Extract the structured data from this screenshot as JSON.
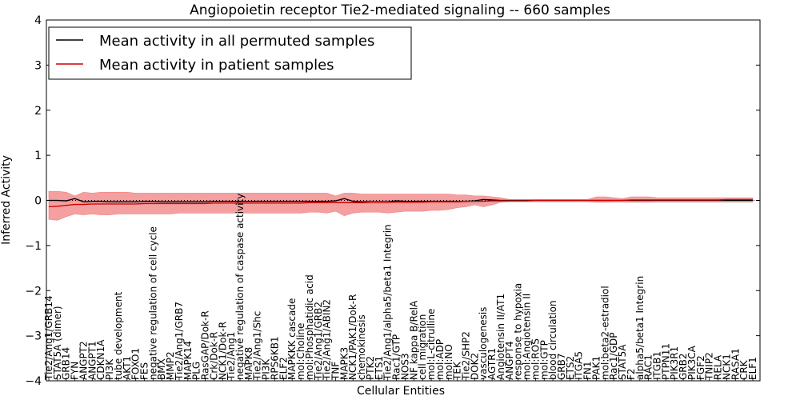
{
  "chart_data": {
    "type": "line",
    "title": "Angiopoietin receptor Tie2-mediated signaling -- 660 samples",
    "xlabel": "Cellular Entities",
    "ylabel": "Inferred Activity",
    "ylim": [
      -4,
      4
    ],
    "yticks": [
      -4,
      -3,
      -2,
      -1,
      0,
      1,
      2,
      3,
      4
    ],
    "legend_position": "top-left",
    "colors": {
      "permuted": "#000000",
      "patient": "#d00000",
      "patient_band": "#f08080",
      "permuted_band": "#c8c8c8"
    },
    "categories": [
      "Tie2/Ang1/GRB14",
      "STAT5A (dimer)",
      "GRB14",
      "FYN",
      "ANGPT2",
      "ANGPT1",
      "CDKN1A",
      "PI3K",
      "tube development",
      "AKT1",
      "FOXO1",
      "FES",
      "negative regulation of cell cycle",
      "BMX",
      "MMP2",
      "Tie2/Ang1/GRB7",
      "MAPK14",
      "PLG",
      "RasGAP/Dok-R",
      "Crk/Dok-R",
      "NCK1/Dok-R",
      "Tie2/Ang1",
      "negative regulation of caspase activity",
      "MAPK8",
      "Tie2/Ang1/Shc",
      "PI3K",
      "RPS6KB1",
      "ELF2",
      "MAPKKK cascade",
      "mol:Choline",
      "mol:Phosphatidic acid",
      "Tie2/Ang1/GRB2",
      "Tie2/Ang1/ABIN2",
      "TNF",
      "MAPK3",
      "NCK1/PAK1/Dok-R",
      "chemokinesis",
      "PTK2",
      "ETS1",
      "Tie2/Ang1/alpha5/beta1 Integrin",
      "Rac1/GTP",
      "NOS3",
      "NF kappa B/RelA",
      "cell migration",
      "mol:L-citrulline",
      "mol:ADP",
      "mol:NO",
      "TEK",
      "Tie2/SHP2",
      "DOK2",
      "vasculogenesis",
      "AGTR1",
      "Angiotensin II/AT1",
      "ANGPT4",
      "response to hypoxia",
      "mol:Angiotensin II",
      "mol:ROS",
      "mol:GTP",
      "blood circulation",
      "GRB7",
      "ETS2",
      "ITGA5",
      "FN1",
      "PAK1",
      "mol:beta2-estradiol",
      "Rac1/GDP",
      "STAT5A",
      "F2",
      "alpha5/beta1 Integrin",
      "RAC1",
      "ITGB1",
      "PTPN11",
      "PIK3R1",
      "GRB2",
      "PIK3CA",
      "FGF2",
      "TNIP2",
      "RELA",
      "NCK1",
      "RASA1",
      "CRK",
      "ELF1"
    ],
    "series": [
      {
        "name": "Mean activity in all permuted samples",
        "color": "#000000",
        "values": [
          0.0,
          0.0,
          -0.01,
          0.04,
          -0.03,
          -0.02,
          -0.02,
          -0.03,
          -0.03,
          -0.03,
          -0.03,
          -0.02,
          -0.02,
          -0.03,
          -0.03,
          -0.03,
          -0.03,
          -0.03,
          -0.03,
          -0.02,
          -0.02,
          -0.02,
          -0.02,
          -0.02,
          -0.02,
          -0.02,
          -0.02,
          -0.02,
          -0.02,
          -0.02,
          -0.02,
          -0.02,
          -0.02,
          -0.01,
          0.04,
          -0.02,
          -0.03,
          -0.03,
          -0.03,
          -0.03,
          -0.01,
          -0.02,
          -0.02,
          -0.02,
          -0.02,
          -0.02,
          -0.02,
          -0.02,
          -0.02,
          -0.01,
          0.02,
          0.01,
          0.0,
          0.0,
          0.0,
          0.0,
          0.0,
          0.0,
          0.0,
          0.0,
          0.0,
          0.0,
          0.0,
          0.0,
          0.0,
          0.0,
          0.0,
          0.0,
          0.0,
          0.0,
          0.0,
          0.0,
          0.0,
          0.0,
          0.0,
          0.0,
          0.0,
          0.0,
          0.0,
          0.0,
          0.0,
          0.0
        ]
      },
      {
        "name": "Mean activity in patient samples",
        "color": "#d00000",
        "values": [
          -0.14,
          -0.13,
          -0.11,
          -0.09,
          -0.09,
          -0.08,
          -0.08,
          -0.08,
          -0.08,
          -0.08,
          -0.08,
          -0.07,
          -0.07,
          -0.07,
          -0.07,
          -0.07,
          -0.07,
          -0.07,
          -0.07,
          -0.06,
          -0.06,
          -0.06,
          -0.06,
          -0.06,
          -0.06,
          -0.06,
          -0.06,
          -0.06,
          -0.06,
          -0.06,
          -0.05,
          -0.05,
          -0.05,
          -0.05,
          -0.05,
          -0.05,
          -0.05,
          -0.04,
          -0.04,
          -0.04,
          -0.04,
          -0.04,
          -0.04,
          -0.04,
          -0.03,
          -0.03,
          -0.03,
          -0.03,
          -0.02,
          -0.02,
          -0.02,
          -0.01,
          -0.01,
          -0.01,
          -0.01,
          -0.01,
          0.0,
          0.0,
          0.0,
          0.0,
          0.0,
          0.0,
          0.0,
          0.0,
          0.0,
          0.0,
          0.0,
          0.01,
          0.01,
          0.01,
          0.01,
          0.01,
          0.01,
          0.01,
          0.01,
          0.01,
          0.01,
          0.01,
          0.02,
          0.02,
          0.02,
          0.02
        ]
      }
    ],
    "patient_band": {
      "upper": [
        0.2,
        0.2,
        0.18,
        0.1,
        0.18,
        0.16,
        0.18,
        0.18,
        0.18,
        0.18,
        0.16,
        0.16,
        0.16,
        0.16,
        0.16,
        0.16,
        0.16,
        0.16,
        0.16,
        0.16,
        0.16,
        0.16,
        0.16,
        0.16,
        0.16,
        0.16,
        0.16,
        0.16,
        0.16,
        0.16,
        0.16,
        0.16,
        0.16,
        0.1,
        0.16,
        0.16,
        0.14,
        0.14,
        0.14,
        0.14,
        0.14,
        0.14,
        0.14,
        0.14,
        0.14,
        0.14,
        0.14,
        0.12,
        0.12,
        0.1,
        0.1,
        0.08,
        0.06,
        0.02,
        0.02,
        0.02,
        0.02,
        0.02,
        0.02,
        0.02,
        0.02,
        0.02,
        0.02,
        0.08,
        0.08,
        0.06,
        0.04,
        0.08,
        0.08,
        0.08,
        0.06,
        0.06,
        0.06,
        0.06,
        0.06,
        0.06,
        0.06,
        0.06,
        0.06,
        0.06,
        0.06,
        0.06
      ],
      "lower": [
        -0.42,
        -0.44,
        -0.36,
        -0.3,
        -0.32,
        -0.3,
        -0.32,
        -0.32,
        -0.3,
        -0.3,
        -0.3,
        -0.3,
        -0.3,
        -0.3,
        -0.3,
        -0.28,
        -0.28,
        -0.28,
        -0.28,
        -0.28,
        -0.28,
        -0.28,
        -0.28,
        -0.28,
        -0.28,
        -0.28,
        -0.28,
        -0.28,
        -0.28,
        -0.28,
        -0.26,
        -0.26,
        -0.28,
        -0.24,
        -0.34,
        -0.28,
        -0.26,
        -0.26,
        -0.26,
        -0.28,
        -0.26,
        -0.24,
        -0.24,
        -0.24,
        -0.22,
        -0.22,
        -0.2,
        -0.16,
        -0.14,
        -0.1,
        -0.14,
        -0.1,
        -0.04,
        -0.02,
        -0.02,
        -0.02,
        -0.02,
        -0.02,
        -0.02,
        -0.02,
        -0.02,
        -0.02,
        -0.02,
        -0.04,
        -0.04,
        -0.03,
        -0.03,
        -0.04,
        -0.04,
        -0.04,
        -0.03,
        -0.03,
        -0.03,
        -0.03,
        -0.03,
        -0.03,
        -0.03,
        -0.03,
        -0.03,
        -0.03,
        -0.03,
        -0.03
      ]
    }
  }
}
